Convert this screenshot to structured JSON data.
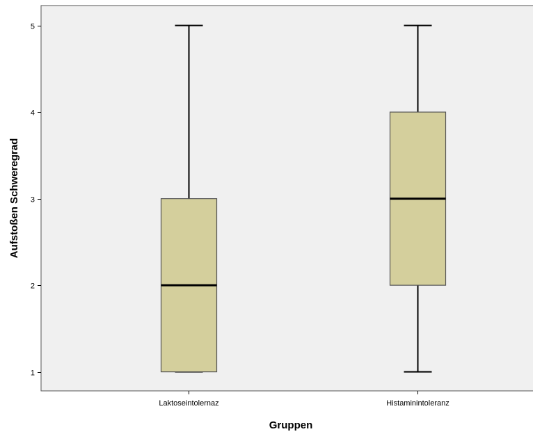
{
  "chart_data": {
    "type": "boxplot",
    "title": "",
    "xlabel": "Gruppen",
    "ylabel": "Aufstoßen Schweregrad",
    "ylim": [
      0.78,
      5.23
    ],
    "y_ticks": [
      1,
      2,
      3,
      4,
      5
    ],
    "grid": false,
    "categories": [
      "Laktoseintolernaz",
      "Histaminintoleranz"
    ],
    "boxes": [
      {
        "category": "Laktoseintolernaz",
        "min": 1,
        "q1": 1,
        "median": 2,
        "q3": 3,
        "max": 5
      },
      {
        "category": "Histaminintoleranz",
        "min": 1,
        "q1": 2,
        "median": 3,
        "q3": 4,
        "max": 5
      }
    ],
    "colors": {
      "box_fill": "#d4cf9c",
      "box_stroke": "#555555",
      "whisker": "#000000",
      "plot_background": "#f0f0f0"
    }
  }
}
